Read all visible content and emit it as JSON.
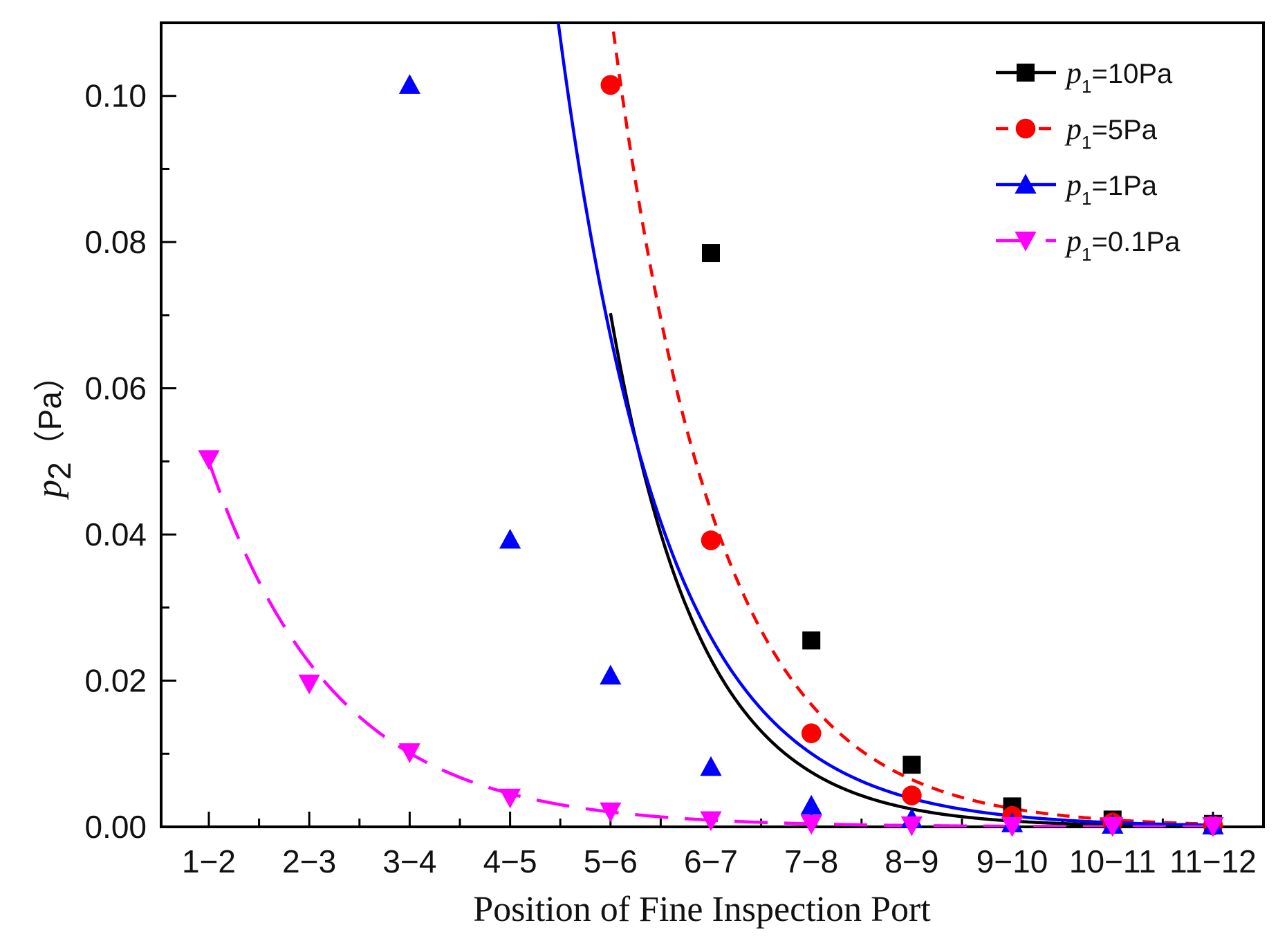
{
  "chart_data": {
    "type": "line",
    "xlabel": "Position of Fine Inspection Port",
    "ylabel_main": "p",
    "ylabel_sub": "2",
    "ylabel_unit": "（Pa）",
    "categories": [
      "1−2",
      "2−3",
      "3−4",
      "4−5",
      "5−6",
      "6−7",
      "7−8",
      "8−9",
      "9−10",
      "10−11",
      "11−12"
    ],
    "ylim": [
      0,
      0.11
    ],
    "yticks": [
      0.0,
      0.02,
      0.04,
      0.06,
      0.08,
      0.1
    ],
    "ytick_labels": [
      "0.00",
      "0.02",
      "0.04",
      "0.06",
      "0.08",
      "0.10"
    ],
    "legend_position": "top-right",
    "series": [
      {
        "name": "p1=10Pa",
        "legend_p": "p",
        "legend_sub": "1",
        "legend_rest": "=10Pa",
        "color": "#000000",
        "marker": "square",
        "dash": "solid",
        "points": [
          [
            6,
            0.0785
          ],
          [
            7,
            0.0255
          ],
          [
            8,
            0.0085
          ],
          [
            9,
            0.0028
          ],
          [
            10,
            0.001
          ],
          [
            11,
            0.0004
          ]
        ],
        "fit_a": 6.2,
        "fit_b": 1.12
      },
      {
        "name": "p1=5Pa",
        "legend_p": "p",
        "legend_sub": "1",
        "legend_rest": "=5Pa",
        "color": "#ff0000",
        "marker": "circle",
        "dash": "short",
        "points": [
          [
            5,
            0.1015
          ],
          [
            6,
            0.0392
          ],
          [
            7,
            0.0128
          ],
          [
            8,
            0.0043
          ],
          [
            9,
            0.0015
          ],
          [
            10,
            0.0006
          ],
          [
            11,
            0.0002
          ]
        ],
        "fit_a": 5.0,
        "fit_b": 0.95
      },
      {
        "name": "p1=1Pa",
        "legend_p": "p",
        "legend_sub": "1",
        "legend_rest": "=1Pa",
        "color": "#0000ff",
        "marker": "triangle-up",
        "dash": "solid",
        "points": [
          [
            3,
            0.1015
          ],
          [
            4,
            0.0393
          ],
          [
            5,
            0.0207
          ],
          [
            6,
            0.0082
          ],
          [
            7,
            0.0029
          ],
          [
            8,
            0.0011
          ],
          [
            9,
            0.0005
          ],
          [
            10,
            0.0003
          ],
          [
            11,
            0.0002
          ]
        ],
        "fit_a": 3.0,
        "fit_b": 0.95
      },
      {
        "name": "p1=0.1Pa",
        "legend_p": "p",
        "legend_sub": "1",
        "legend_rest": "=0.1Pa",
        "color": "#ff00ff",
        "marker": "triangle-down",
        "dash": "long",
        "points": [
          [
            1,
            0.0503
          ],
          [
            2,
            0.0196
          ],
          [
            3,
            0.0102
          ],
          [
            4,
            0.004
          ],
          [
            5,
            0.0021
          ],
          [
            6,
            0.0009
          ],
          [
            7,
            0.0004
          ],
          [
            8,
            0.0002
          ],
          [
            9,
            0.0001
          ],
          [
            10,
            0.0001
          ],
          [
            11,
            0.0001
          ]
        ],
        "fit_a": 0.05,
        "fit_b": 0.8
      }
    ]
  }
}
